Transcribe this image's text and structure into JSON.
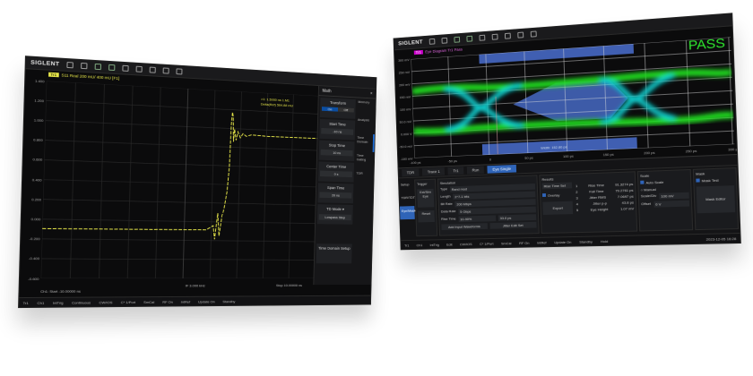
{
  "left": {
    "logo": "SIGLENT",
    "trace_tag": "Tr1",
    "trace_header": "S11 Real 200 mU/ 400 mU [F1]",
    "y_ticks": [
      "1.400",
      "1.200",
      "1.000",
      "0.800",
      "0.600",
      "0.400",
      "0.200",
      "0.000",
      "-0.200",
      "-0.400",
      "-0.600"
    ],
    "marker": {
      "label": ">1:",
      "x": "1.5000 ns",
      "y": "1.M1",
      "ref": "Delta(Ref)",
      "ref_val": "564.88 mU"
    },
    "menu": {
      "title": "Math",
      "items": [
        {
          "label": "Transform",
          "seg": [
            "On",
            "Off"
          ]
        },
        {
          "label": "Start Time",
          "value": "-10 ns"
        },
        {
          "label": "Stop Time",
          "value": "10 ns"
        },
        {
          "label": "Center Time",
          "value": "0 s"
        },
        {
          "label": "Span Time",
          "value": "20 ns"
        },
        {
          "label": "TD Mode",
          "value": "Lowpass Step"
        },
        {
          "label": "Time Domain Setup",
          "value": ""
        }
      ],
      "side_tabs": [
        "Memory",
        "Analysis",
        "Time Domain",
        "Time Gating",
        "TDR"
      ]
    },
    "axis": {
      "start": "Ch1: Start -10.00000 ns",
      "if": "IF 3.000 kHz",
      "stop": "Stop 10.00000 ns"
    },
    "status": [
      "Tr1",
      "Ch1",
      "IntTrig",
      "Continuous",
      "CW/IOS",
      "C* 1/Port",
      "SmCal",
      "RF On",
      "IntRef",
      "Update On",
      "Standby"
    ],
    "colors": {
      "trace": "#e8e84a",
      "accent": "#0b4ea2"
    }
  },
  "right": {
    "logo": "SIGLENT",
    "trace_tag": "Tr1",
    "trace_header": "Eye Diagram Tr1 Pass",
    "pass": "PASS",
    "y_ticks": [
      "300 mV",
      "250 mV",
      "200 mV",
      "150 mV",
      "100 mV",
      "50.0 mV",
      "0.000 V",
      "-50.0 mV",
      "-100 mV"
    ],
    "x_ticks": [
      "-100 ps",
      "-50 ps",
      "0",
      "50 ps",
      "100 ps",
      "150 ps",
      "200 ps",
      "250 ps",
      "300 ps"
    ],
    "width_label": "Width: 152.80 ps",
    "tabs": [
      "TDR",
      "Trace 1",
      "Tr1",
      "Run",
      "Eye Single"
    ],
    "side_tabs": [
      "Setup",
      "TDR/TDT",
      "Eye/Mask"
    ],
    "trigger": {
      "title": "Trigger",
      "buttons": [
        "Ext/Sim Eye",
        "Reset"
      ]
    },
    "simulation": {
      "title": "Simulation",
      "fields": [
        [
          "Type",
          "Rand mod"
        ],
        [
          "Length",
          "2^7-1 bits"
        ],
        [
          "Bit Rate",
          "200 Mbps"
        ],
        [
          "Data Rate",
          "5 Gbps"
        ],
        [
          "Rise Time",
          "10-90%",
          "33.0 ps"
        ]
      ],
      "buttons": [
        "Add Input Waveforms",
        "Jitter Edit Set"
      ]
    },
    "results": {
      "title": "Results",
      "select": "Rise Time Set",
      "overlay": "Overlay",
      "export": "Export",
      "rows": [
        [
          "1",
          "Rise Time",
          "91.3274 ps"
        ],
        [
          "2",
          "Fall Time",
          "79.2761 ps"
        ],
        [
          "3",
          "Jitter RMS",
          "7.0697 ps"
        ],
        [
          "4",
          "Jitter p-p",
          "43.8 ps"
        ],
        [
          "5",
          "Eye Height",
          "1.07 mV"
        ]
      ]
    },
    "scale": {
      "title": "Scale",
      "auto": "Auto Scale",
      "manual": "Manual",
      "scale_div": [
        "Scale/Div",
        "100 mV"
      ],
      "offset": [
        "Offset",
        "0 V"
      ]
    },
    "mask": {
      "title": "Mask",
      "test": "Mask Test",
      "editor": "Mask Editor"
    },
    "status": [
      "Tr1",
      "Ch1",
      "IntTrig",
      "Edit",
      "CW/IOS",
      "C* 1/Port",
      "SmCal",
      "RF On",
      "IntRef",
      "Update On",
      "Standby",
      "Hold"
    ],
    "timestamp": "2023-12-05 16:28",
    "colors": {
      "pass": "#2ee82e",
      "mask": "#4a6fd0",
      "accent": "#2f64b8"
    }
  }
}
